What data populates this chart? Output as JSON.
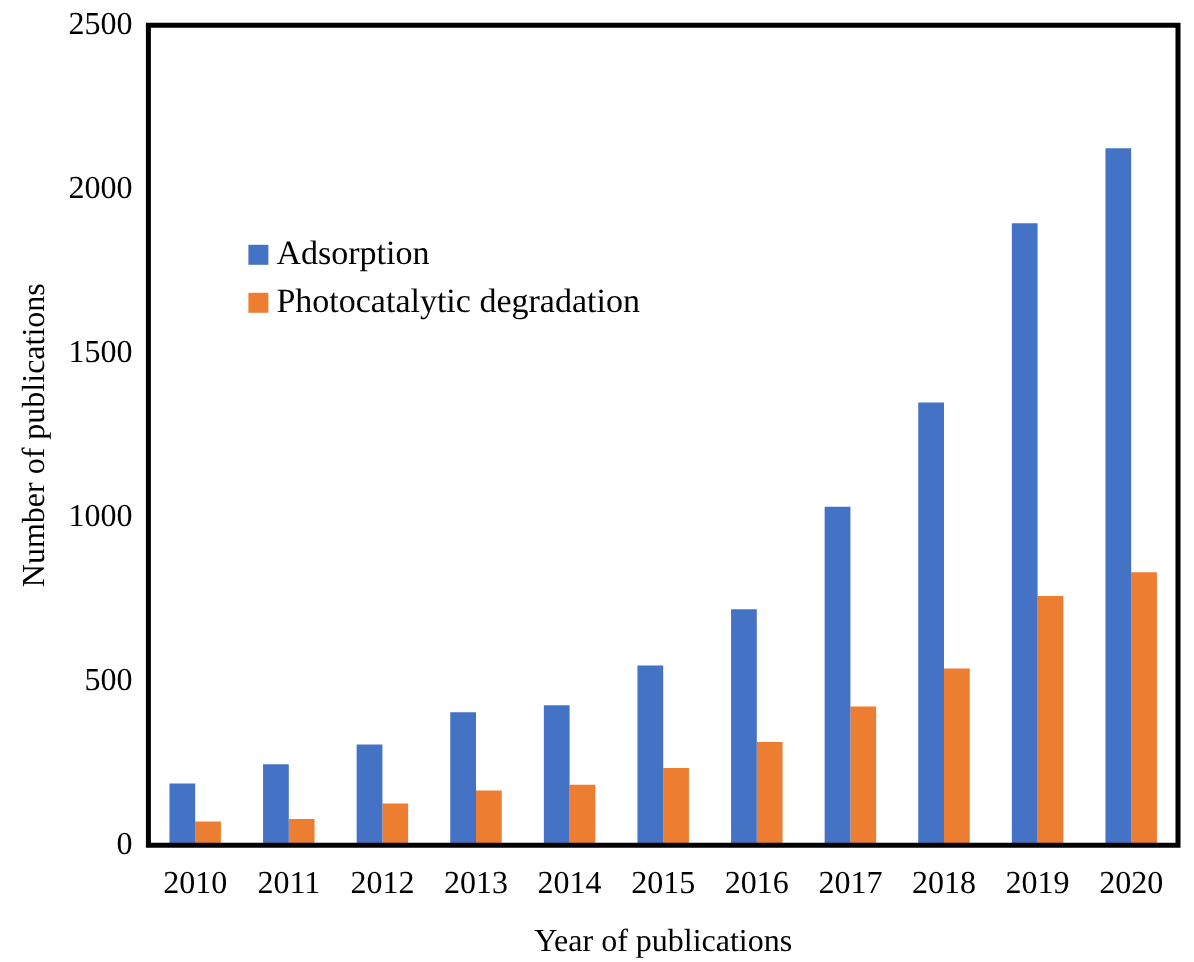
{
  "chart_data": {
    "type": "bar",
    "xlabel": "Year of publications",
    "ylabel": "Number of publications",
    "categories": [
      "2010",
      "2011",
      "2012",
      "2013",
      "2014",
      "2015",
      "2016",
      "2017",
      "2018",
      "2019",
      "2020"
    ],
    "series": [
      {
        "name": "Adsorption",
        "color": "#4472c4",
        "values": [
          188,
          247,
          307,
          405,
          427,
          548,
          719,
          1032,
          1350,
          1896,
          2125
        ]
      },
      {
        "name": "Photocatalytic degradation",
        "color": "#ed7d31",
        "values": [
          72,
          80,
          127,
          167,
          184,
          235,
          315,
          423,
          539,
          760,
          832
        ]
      }
    ],
    "ylim": [
      0,
      2500
    ],
    "yticks": [
      0,
      500,
      1000,
      1500,
      2000,
      2500
    ],
    "grid": false,
    "legend": "top left"
  }
}
